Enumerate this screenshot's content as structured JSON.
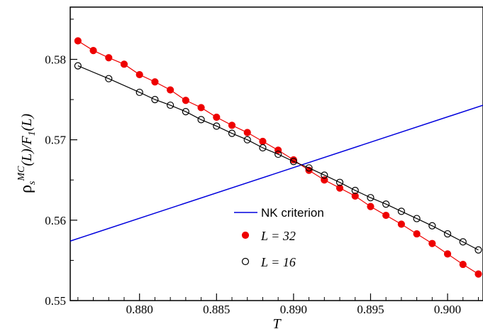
{
  "chart_data": {
    "type": "scatter",
    "xlabel": "T",
    "ylabel": {
      "rho": "ρ",
      "sub_s": "s",
      "sup_mc": "MC",
      "rest_a": "(L)/F",
      "sub_1": "1",
      "rest_b": "(L)"
    },
    "xlim": [
      0.8755,
      0.9023
    ],
    "ylim": [
      0.55,
      0.5865
    ],
    "x_ticks": [
      0.88,
      0.885,
      0.89,
      0.895,
      0.9
    ],
    "x_tick_labels": [
      "0.880",
      "0.885",
      "0.890",
      "0.895",
      "0.900"
    ],
    "y_ticks": [
      0.55,
      0.56,
      0.57,
      0.58
    ],
    "y_tick_labels": [
      "0.55",
      "0.56",
      "0.57",
      "0.58"
    ],
    "grid": false,
    "legend_position": "bottom-center",
    "series": [
      {
        "name": "NK criterion",
        "kind": "line",
        "color": "#0000dd",
        "x": [
          0.8755,
          0.9023
        ],
        "y": [
          0.5574,
          0.5743
        ]
      },
      {
        "name": "L = 32",
        "kind": "filled-points-with-line",
        "color": "#ee0000",
        "x": [
          0.876,
          0.877,
          0.878,
          0.879,
          0.88,
          0.881,
          0.882,
          0.883,
          0.884,
          0.885,
          0.886,
          0.887,
          0.888,
          0.889,
          0.89,
          0.891,
          0.892,
          0.893,
          0.894,
          0.895,
          0.896,
          0.897,
          0.898,
          0.899,
          0.9,
          0.901,
          0.902
        ],
        "y": [
          0.5823,
          0.5811,
          0.5802,
          0.5794,
          0.5781,
          0.5772,
          0.5762,
          0.5749,
          0.574,
          0.5728,
          0.5718,
          0.5709,
          0.5698,
          0.5687,
          0.5675,
          0.5662,
          0.565,
          0.564,
          0.563,
          0.5617,
          0.5606,
          0.5595,
          0.5583,
          0.5571,
          0.5558,
          0.5545,
          0.5533
        ]
      },
      {
        "name": "L = 16",
        "kind": "open-points-with-line",
        "color": "#000000",
        "x": [
          0.876,
          0.878,
          0.88,
          0.881,
          0.882,
          0.883,
          0.884,
          0.885,
          0.886,
          0.887,
          0.888,
          0.889,
          0.89,
          0.891,
          0.892,
          0.893,
          0.894,
          0.895,
          0.896,
          0.897,
          0.898,
          0.899,
          0.9,
          0.901,
          0.902
        ],
        "y": [
          0.5792,
          0.5776,
          0.5759,
          0.575,
          0.5743,
          0.5735,
          0.5725,
          0.5717,
          0.5708,
          0.57,
          0.569,
          0.5682,
          0.5673,
          0.5665,
          0.5656,
          0.5647,
          0.5637,
          0.5628,
          0.562,
          0.5611,
          0.5602,
          0.5593,
          0.5583,
          0.5573,
          0.5563
        ]
      }
    ]
  }
}
